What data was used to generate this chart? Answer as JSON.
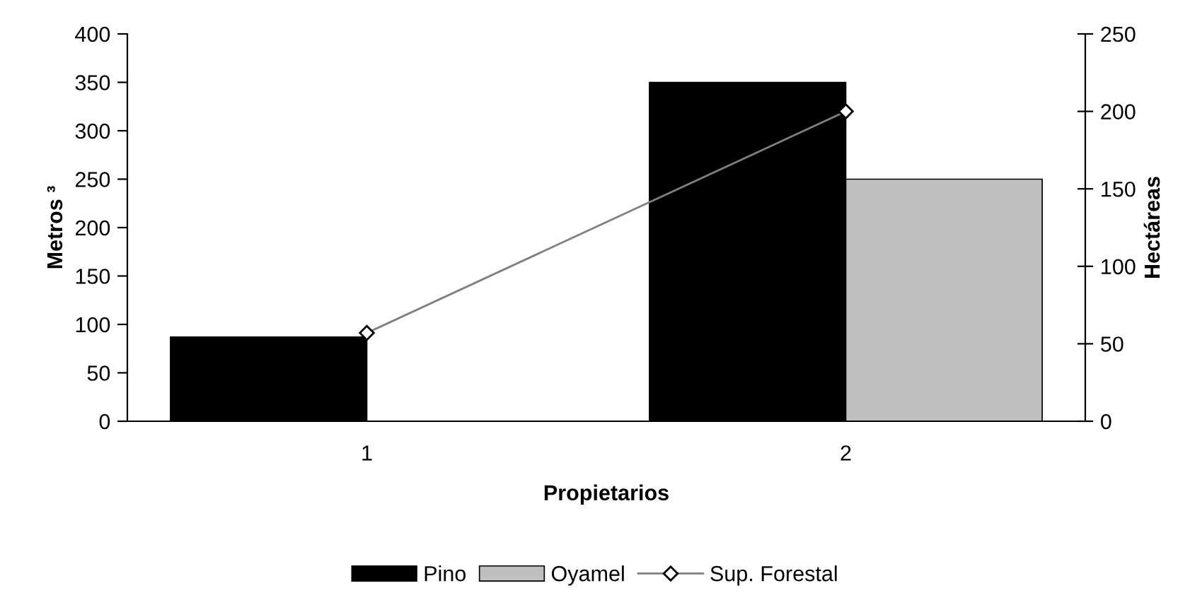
{
  "chart_data": {
    "type": "bar",
    "xlabel": "Propietarios",
    "ylabel": "Metros ³",
    "y2label": "Hectáreas",
    "categories": [
      "1",
      "2"
    ],
    "series": [
      {
        "name": "Pino",
        "color": "#000000",
        "values": [
          87,
          350
        ]
      },
      {
        "name": "Oyamel",
        "color": "#c0c0c0",
        "values": [
          null,
          250
        ]
      },
      {
        "name": "Sup. Forestal",
        "color": "#808080",
        "type": "line",
        "axis": "y2",
        "marker": "diamond",
        "values": [
          57,
          200
        ]
      }
    ],
    "ylim": [
      0,
      400
    ],
    "yticks": [
      0,
      50,
      100,
      150,
      200,
      250,
      300,
      350,
      400
    ],
    "y2lim": [
      0,
      250
    ],
    "y2ticks": [
      0,
      50,
      100,
      150,
      200,
      250
    ],
    "grid": false,
    "legend": "bottom"
  }
}
